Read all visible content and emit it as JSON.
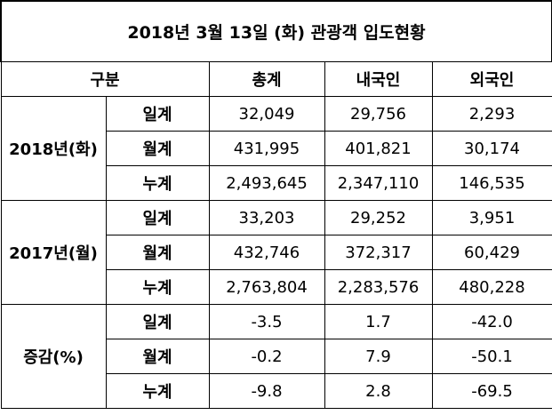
{
  "title": "2018년 3월 13일 (화) 관광객 입도현황",
  "table": {
    "header": [
      "구분",
      "총계",
      "내국인",
      "외국인"
    ],
    "groups": [
      {
        "label": "2018년(화)",
        "rows": [
          {
            "label": "일계",
            "cells": [
              "32,049",
              "29,756",
              "2,293"
            ]
          },
          {
            "label": "월계",
            "cells": [
              "431,995",
              "401,821",
              "30,174"
            ]
          },
          {
            "label": "누계",
            "cells": [
              "2,493,645",
              "2,347,110",
              "146,535"
            ]
          }
        ]
      },
      {
        "label": "2017년(월)",
        "rows": [
          {
            "label": "일계",
            "cells": [
              "33,203",
              "29,252",
              "3,951"
            ]
          },
          {
            "label": "월계",
            "cells": [
              "432,746",
              "372,317",
              "60,429"
            ]
          },
          {
            "label": "누계",
            "cells": [
              "2,763,804",
              "2,283,576",
              "480,228"
            ]
          }
        ]
      },
      {
        "label": "증감(%)",
        "rows": [
          {
            "label": "일계",
            "cells": [
              "-3.5",
              "1.7",
              "-42.0"
            ]
          },
          {
            "label": "월계",
            "cells": [
              "-0.2",
              "7.9",
              "-50.1"
            ]
          },
          {
            "label": "누계",
            "cells": [
              "-9.8",
              "2.8",
              "-69.5"
            ]
          }
        ]
      }
    ]
  }
}
